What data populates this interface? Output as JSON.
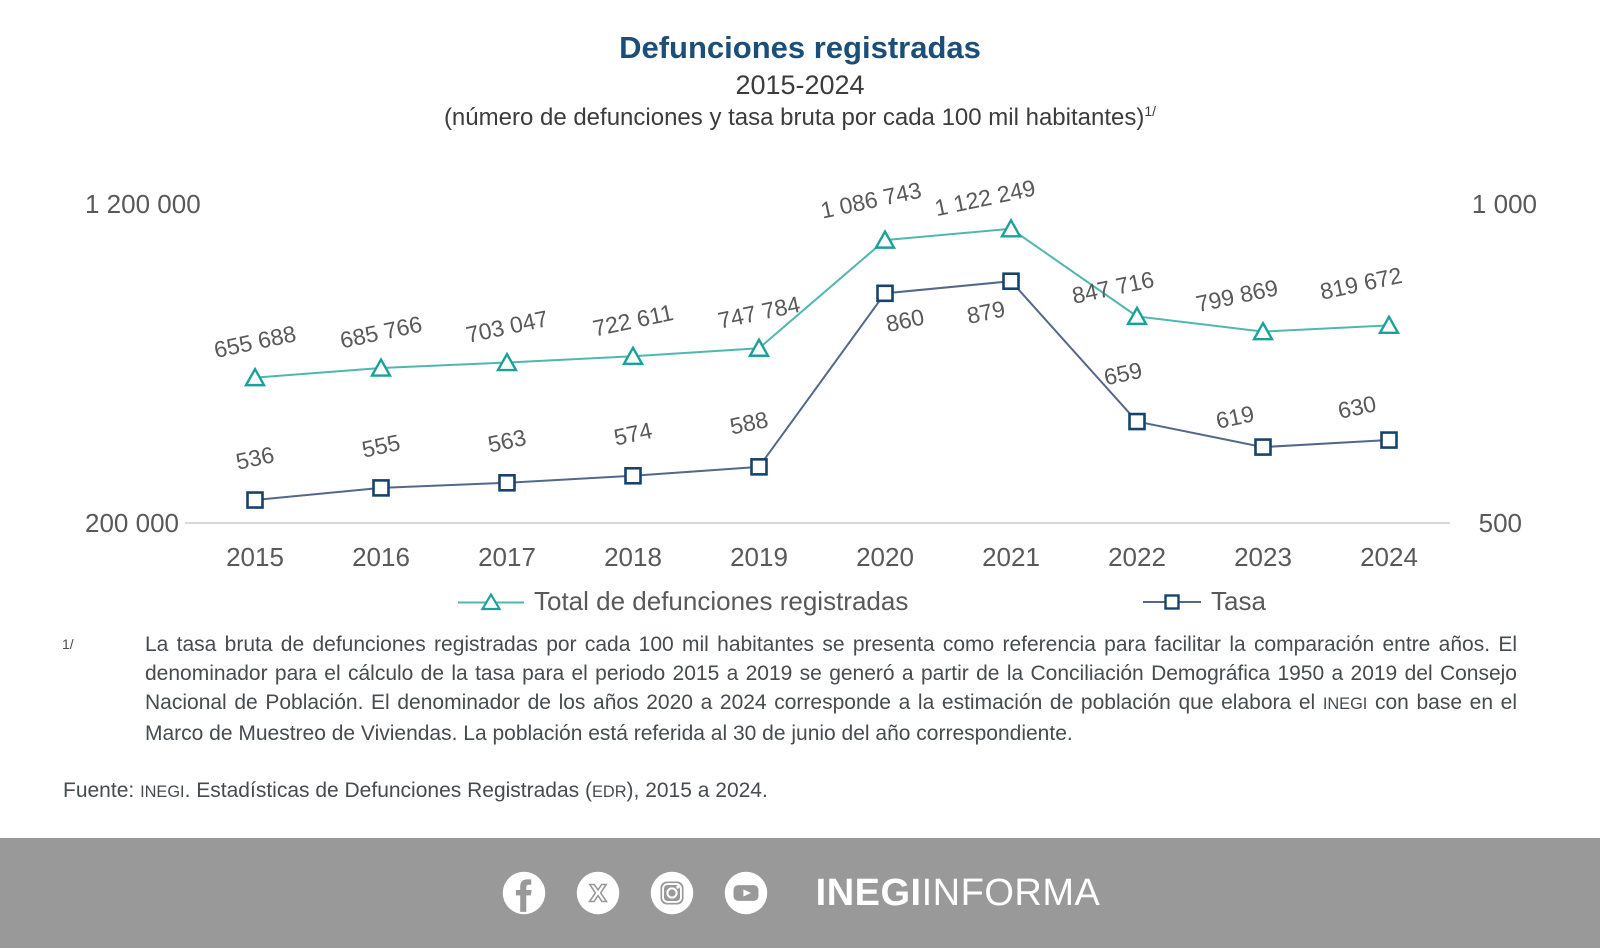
{
  "header": {
    "title": "Defunciones registradas",
    "subtitle": "2015-2024",
    "note": "(número de defunciones y tasa bruta por cada 100 mil habitantes)",
    "note_sup": "1/"
  },
  "chart_data": {
    "type": "line",
    "title": "Defunciones registradas",
    "subtitle": "2015-2024",
    "categories": [
      "2015",
      "2016",
      "2017",
      "2018",
      "2019",
      "2020",
      "2021",
      "2022",
      "2023",
      "2024"
    ],
    "series": [
      {
        "name": "Total de defunciones registradas",
        "axis": "left",
        "marker": "triangle",
        "values": [
          655688,
          685766,
          703047,
          722611,
          747784,
          1086743,
          1122249,
          847716,
          799869,
          819672
        ],
        "labels": [
          "655 688",
          "685 766",
          "703 047",
          "722 611",
          "747 784",
          "1 086 743",
          "1 122 249",
          "847 716",
          "799 869",
          "819 672"
        ]
      },
      {
        "name": "Tasa",
        "axis": "right",
        "marker": "square",
        "values": [
          536,
          555,
          563,
          574,
          588,
          860,
          879,
          659,
          619,
          630
        ],
        "labels": [
          "536",
          "555",
          "563",
          "574",
          "588",
          "860",
          "879",
          "659",
          "619",
          "630"
        ]
      }
    ],
    "left_axis": {
      "min": 200000,
      "max": 1200000,
      "tick_labels": [
        "1 200 000",
        "200 000"
      ]
    },
    "right_axis": {
      "min": 500,
      "max": 1000,
      "tick_labels": [
        "1 000",
        "500"
      ]
    },
    "grid": false,
    "legend_position": "bottom"
  },
  "legend": {
    "items": [
      {
        "label": "Total de defunciones registradas",
        "marker": "triangle"
      },
      {
        "label": "Tasa",
        "marker": "square"
      }
    ]
  },
  "footnote": {
    "marker": "1/",
    "segments": [
      {
        "text": "La tasa bruta de defunciones registradas por cada 100 mil habitantes se presenta como referencia para facilitar la comparación entre años. El denominador para el cálculo de la tasa para el periodo 2015 a 2019 se generó a partir de la Conciliación Demográfica 1950 a 2019 del Consejo Nacional de Población. El denominador de los años 2020 a 2024 corresponde a la estimación de población que elabora el "
      },
      {
        "text": "INEGI",
        "caps": true
      },
      {
        "text": " con base en el Marco de Muestreo de Viviendas. La población está referida al 30 de junio del año correspondiente."
      }
    ]
  },
  "source": {
    "segments": [
      {
        "text": "Fuente: "
      },
      {
        "text": "INEGI",
        "caps": true
      },
      {
        "text": ". Estadísticas de Defunciones Registradas ("
      },
      {
        "text": "EDR",
        "caps": true
      },
      {
        "text": "), 2015 a 2024."
      }
    ]
  },
  "footer": {
    "brand_bold": "INEGI",
    "brand_regular": "INFORMA",
    "icons": [
      "facebook-icon",
      "x-icon",
      "instagram-icon",
      "youtube-icon"
    ]
  },
  "colors": {
    "title_navy": "#1B4E79",
    "text_dark": "#454B4E",
    "label_gray": "#595959",
    "total_line": "#4FB8AE",
    "total_marker": "#1AA299",
    "tasa_line": "#54688A",
    "tasa_marker": "#16436B",
    "axis_line": "#D9D9D9",
    "footer_band": "#999999"
  }
}
